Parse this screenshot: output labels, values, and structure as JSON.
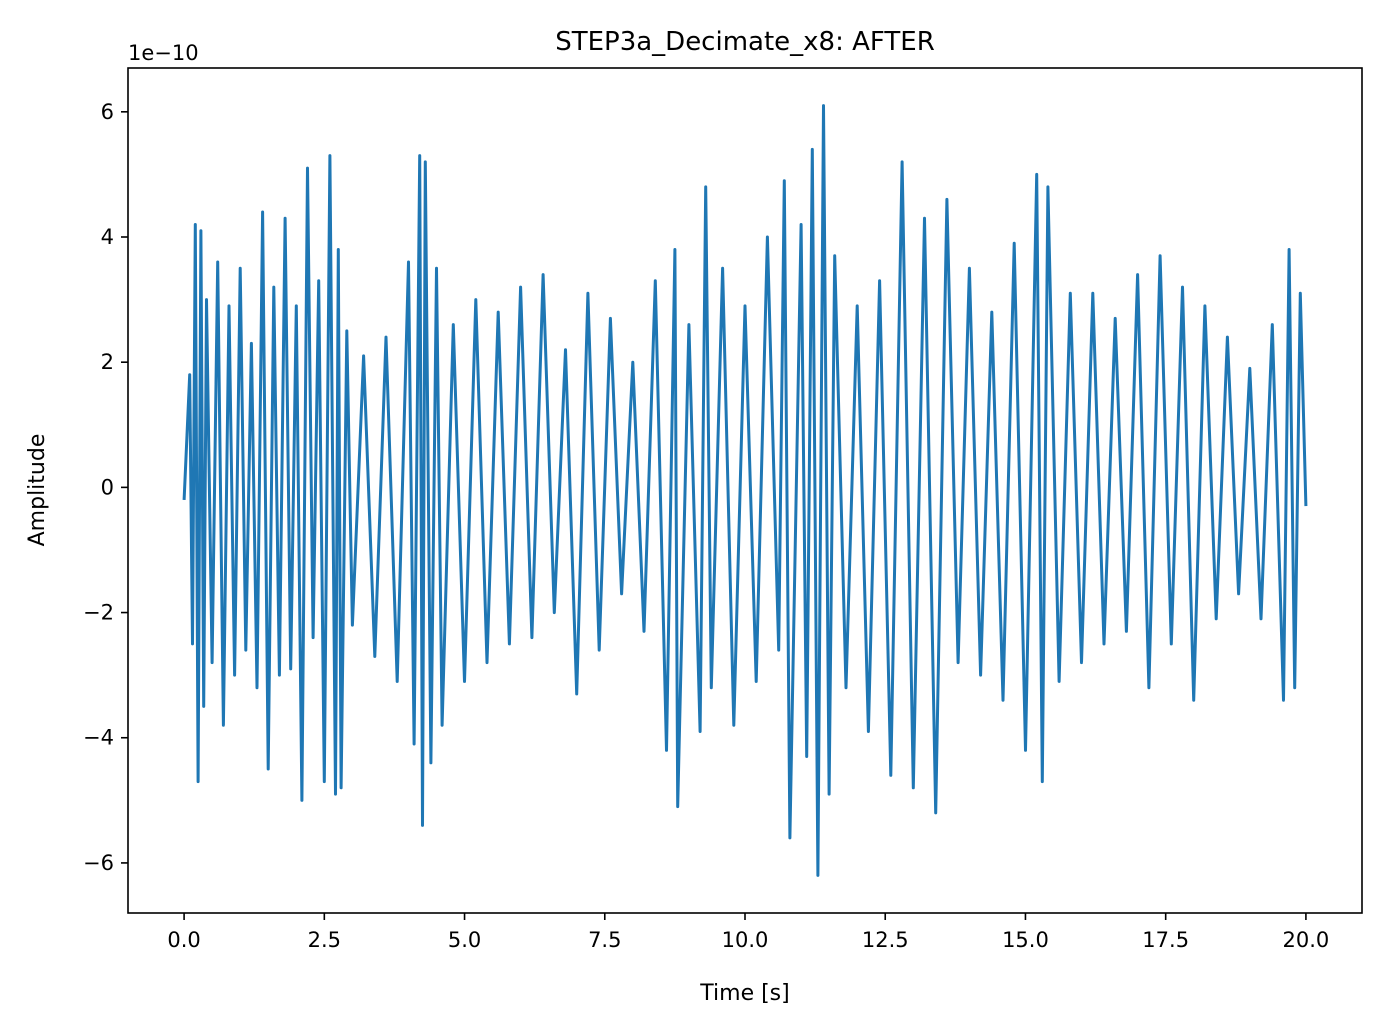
{
  "chart_data": {
    "type": "line",
    "title": "STEP3a_Decimate_x8: AFTER",
    "xlabel": "Time [s]",
    "ylabel": "Amplitude",
    "y_offset_label": "1e−10",
    "xlim": [
      -1.0,
      21.0
    ],
    "ylim": [
      -6.8,
      6.7
    ],
    "x_ticks": [
      0.0,
      2.5,
      5.0,
      7.5,
      10.0,
      12.5,
      15.0,
      17.5,
      20.0
    ],
    "x_tick_labels": [
      "0.0",
      "2.5",
      "5.0",
      "7.5",
      "10.0",
      "12.5",
      "15.0",
      "17.5",
      "20.0"
    ],
    "y_ticks": [
      -6,
      -4,
      -2,
      0,
      2,
      4,
      6
    ],
    "y_tick_labels": [
      "−6",
      "−4",
      "−2",
      "0",
      "2",
      "4",
      "6"
    ],
    "grid": false,
    "legend": "none",
    "line_color": "#1f77b4",
    "series": [
      {
        "x": [
          0.0,
          0.1,
          0.15,
          0.2,
          0.25,
          0.3,
          0.35,
          0.4,
          0.5,
          0.6,
          0.7,
          0.8,
          0.9,
          1.0,
          1.1,
          1.2,
          1.3,
          1.4,
          1.5,
          1.6,
          1.7,
          1.8,
          1.9,
          2.0,
          2.1,
          2.2,
          2.3,
          2.4,
          2.5,
          2.6,
          2.7,
          2.75,
          2.8,
          2.9,
          3.0,
          3.2,
          3.4,
          3.6,
          3.8,
          4.0,
          4.1,
          4.2,
          4.25,
          4.3,
          4.4,
          4.5,
          4.6,
          4.8,
          5.0,
          5.2,
          5.4,
          5.6,
          5.8,
          6.0,
          6.2,
          6.4,
          6.6,
          6.8,
          7.0,
          7.2,
          7.4,
          7.6,
          7.8,
          8.0,
          8.2,
          8.4,
          8.6,
          8.75,
          8.8,
          9.0,
          9.2,
          9.3,
          9.4,
          9.6,
          9.8,
          10.0,
          10.2,
          10.4,
          10.6,
          10.7,
          10.8,
          11.0,
          11.1,
          11.2,
          11.3,
          11.4,
          11.5,
          11.6,
          11.8,
          12.0,
          12.2,
          12.4,
          12.6,
          12.8,
          13.0,
          13.2,
          13.4,
          13.6,
          13.8,
          14.0,
          14.2,
          14.4,
          14.6,
          14.8,
          15.0,
          15.2,
          15.3,
          15.4,
          15.6,
          15.8,
          16.0,
          16.2,
          16.4,
          16.6,
          16.8,
          17.0,
          17.2,
          17.4,
          17.6,
          17.8,
          18.0,
          18.2,
          18.4,
          18.6,
          18.8,
          19.0,
          19.2,
          19.4,
          19.6,
          19.7,
          19.8,
          19.9,
          20.0
        ],
        "y": [
          -0.2,
          1.8,
          -2.5,
          4.2,
          -4.7,
          4.1,
          -3.5,
          3.0,
          -2.8,
          3.6,
          -3.8,
          2.9,
          -3.0,
          3.5,
          -2.6,
          2.3,
          -3.2,
          4.4,
          -4.5,
          3.2,
          -3.0,
          4.3,
          -2.9,
          2.9,
          -5.0,
          5.1,
          -2.4,
          3.3,
          -4.7,
          5.3,
          -4.9,
          3.8,
          -4.8,
          2.5,
          -2.2,
          2.1,
          -2.7,
          2.4,
          -3.1,
          3.6,
          -4.1,
          5.3,
          -5.4,
          5.2,
          -4.4,
          3.5,
          -3.8,
          2.6,
          -3.1,
          3.0,
          -2.8,
          2.8,
          -2.5,
          3.2,
          -2.4,
          3.4,
          -2.0,
          2.2,
          -3.3,
          3.1,
          -2.6,
          2.7,
          -1.7,
          2.0,
          -2.3,
          3.3,
          -4.2,
          3.8,
          -5.1,
          2.6,
          -3.9,
          4.8,
          -3.2,
          3.5,
          -3.8,
          2.9,
          -3.1,
          4.0,
          -2.6,
          4.9,
          -5.6,
          4.2,
          -4.3,
          5.4,
          -6.2,
          6.1,
          -4.9,
          3.7,
          -3.2,
          2.9,
          -3.9,
          3.3,
          -4.6,
          5.2,
          -4.8,
          4.3,
          -5.2,
          4.6,
          -2.8,
          3.5,
          -3.0,
          2.8,
          -3.4,
          3.9,
          -4.2,
          5.0,
          -4.7,
          4.8,
          -3.1,
          3.1,
          -2.8,
          3.1,
          -2.5,
          2.7,
          -2.3,
          3.4,
          -3.2,
          3.7,
          -2.5,
          3.2,
          -3.4,
          2.9,
          -2.1,
          2.4,
          -1.7,
          1.9,
          -2.1,
          2.6,
          -3.4,
          3.8,
          -3.2,
          3.1,
          -0.3
        ]
      }
    ]
  }
}
